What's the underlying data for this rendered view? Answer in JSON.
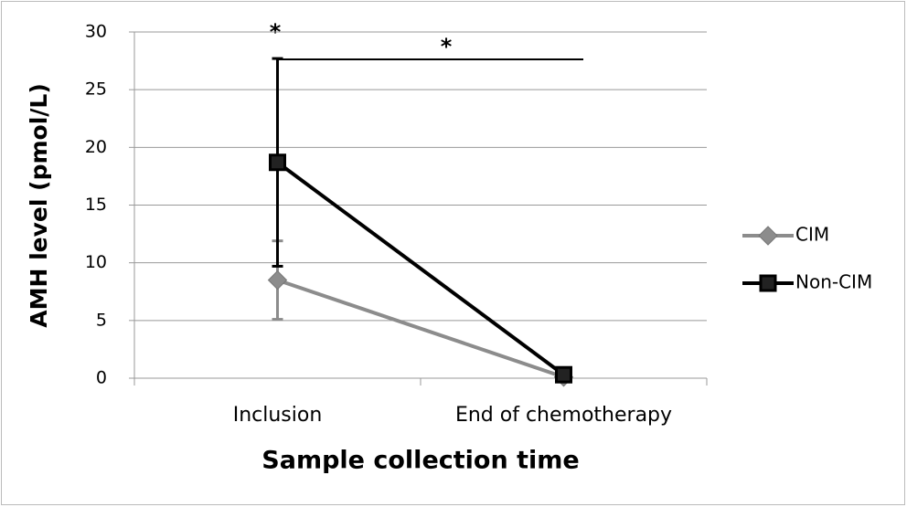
{
  "chart_data": {
    "type": "line",
    "y_label": "AMH level (pmol/L)",
    "x_label": "Sample collection time",
    "categories": [
      "Inclusion",
      "End of chemotherapy"
    ],
    "series": [
      {
        "name": "CIM",
        "color": "#8c8c8c",
        "marker": "diamond",
        "values": [
          8.5,
          0.1
        ],
        "errors": [
          3.4,
          null
        ]
      },
      {
        "name": "Non-CIM",
        "color": "#000000",
        "marker": "square",
        "values": [
          18.7,
          0.3
        ],
        "errors": [
          9,
          null
        ]
      }
    ],
    "annotations": [
      "*",
      "*"
    ],
    "ylim": [
      0,
      30
    ],
    "yticks": [
      0,
      5,
      10,
      15,
      20,
      25,
      30
    ],
    "grid": true,
    "legend": "right"
  }
}
